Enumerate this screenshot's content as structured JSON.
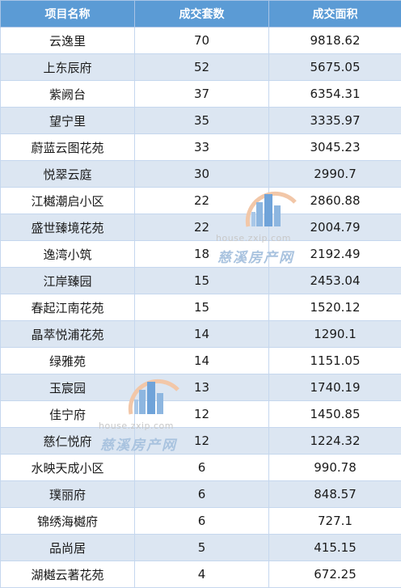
{
  "table": {
    "headers": [
      "项目名称",
      "成交套数",
      "成交面积"
    ],
    "rows": [
      [
        "云逸里",
        "70",
        "9818.62"
      ],
      [
        "上东辰府",
        "52",
        "5675.05"
      ],
      [
        "紫阙台",
        "37",
        "6354.31"
      ],
      [
        "望宁里",
        "35",
        "3335.97"
      ],
      [
        "蔚蓝云图花苑",
        "33",
        "3045.23"
      ],
      [
        "悦翠云庭",
        "30",
        "2990.7"
      ],
      [
        "江樾潮启小区",
        "22",
        "2860.88"
      ],
      [
        "盛世臻境花苑",
        "22",
        "2004.79"
      ],
      [
        "逸湾小筑",
        "18",
        "2192.49"
      ],
      [
        "江岸臻园",
        "15",
        "2453.04"
      ],
      [
        "春起江南花苑",
        "15",
        "1520.12"
      ],
      [
        "晶萃悦浦花苑",
        "14",
        "1290.1"
      ],
      [
        "绿雅苑",
        "14",
        "1151.05"
      ],
      [
        "玉宸园",
        "13",
        "1740.19"
      ],
      [
        "佳宁府",
        "12",
        "1450.85"
      ],
      [
        "慈仁悦府",
        "12",
        "1224.32"
      ],
      [
        "水映天成小区",
        "6",
        "990.78"
      ],
      [
        "璞丽府",
        "6",
        "848.57"
      ],
      [
        "锦绣海樾府",
        "6",
        "727.1"
      ],
      [
        "品尚居",
        "5",
        "415.15"
      ],
      [
        "湖樾云著花苑",
        "4",
        "672.25"
      ]
    ]
  },
  "watermarks": [
    {
      "url": "house.zxip.com",
      "name": "慈溪房产网"
    },
    {
      "url": "house.zxip.com",
      "name": "慈溪房产网"
    }
  ],
  "colors": {
    "header": "#5b9bd5",
    "stripe": "#dce6f2"
  }
}
